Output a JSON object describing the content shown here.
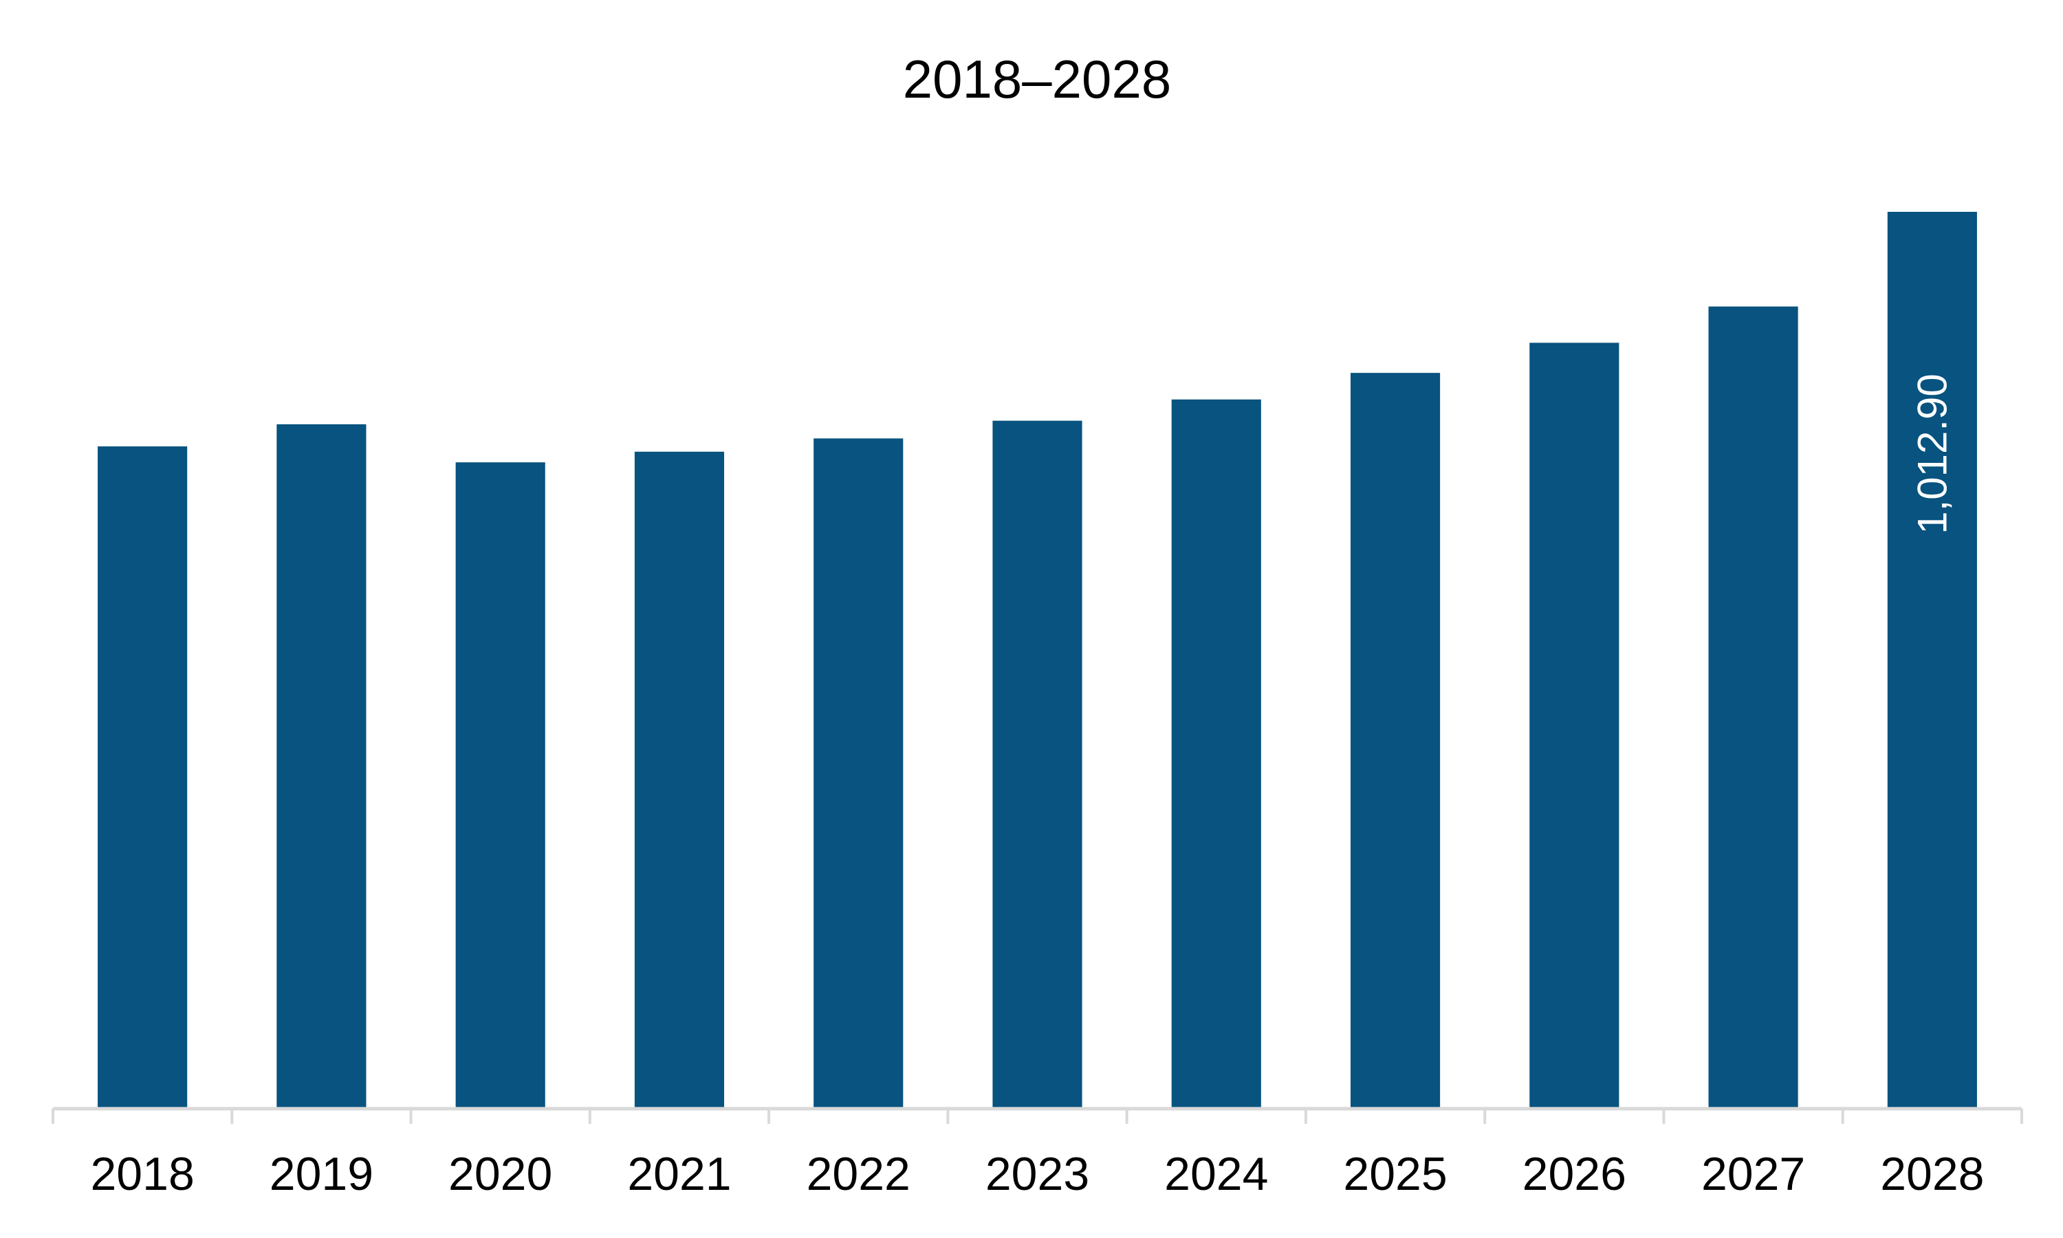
{
  "chart_data": {
    "type": "bar",
    "title": "2018–2028",
    "categories": [
      "2018",
      "2019",
      "2020",
      "2021",
      "2022",
      "2023",
      "2024",
      "2025",
      "2026",
      "2027",
      "2028"
    ],
    "values": [
      748,
      773,
      730,
      742,
      757,
      777,
      801,
      831,
      865,
      906,
      1012.9
    ],
    "data_labels": [
      {
        "index": 10,
        "text": "1,012.90"
      }
    ],
    "xlabel": "",
    "ylabel": "",
    "ylim": [
      0,
      1012.9
    ],
    "grid": false,
    "legend": "none",
    "bar_color": "#08537f",
    "axis_color": "#d9d9d9"
  }
}
